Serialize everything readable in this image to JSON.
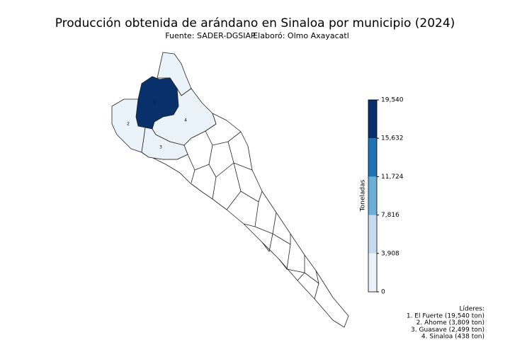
{
  "title": "Producción obtenida de arándano en Sinaloa por municipio (2024)",
  "source": "Fuente: SADER-DGSIAP",
  "author": "Elaboró: Olmo Axayacatl",
  "colorbar": {
    "label": "Toneladas",
    "lim": [
      0,
      19540
    ],
    "ticks": [
      0,
      {
        "value": 3908,
        "label": "3,908"
      },
      {
        "value": 7816,
        "label": "7,816"
      },
      {
        "value": 11724,
        "label": "11,724"
      },
      {
        "value": 15632,
        "label": "15,632"
      },
      {
        "value": 19540,
        "label": "19,540"
      }
    ],
    "colors": [
      "#eaf2fa",
      "#c6dbef",
      "#6baed6",
      "#2171b5",
      "#08306b"
    ]
  },
  "regions": [
    {
      "label": "1",
      "value": 19540
    },
    {
      "label": "2",
      "value": 3809
    },
    {
      "label": "3",
      "value": 2499
    },
    {
      "label": "4",
      "value": 438
    }
  ],
  "leaders": {
    "title": "Líderes:",
    "items": [
      "1. El Fuerte (19,540 ton)",
      "2. Ahome (3,809 ton)",
      "3. Guasave (2,499 ton)",
      "4. Sinaloa (438 ton)"
    ]
  }
}
